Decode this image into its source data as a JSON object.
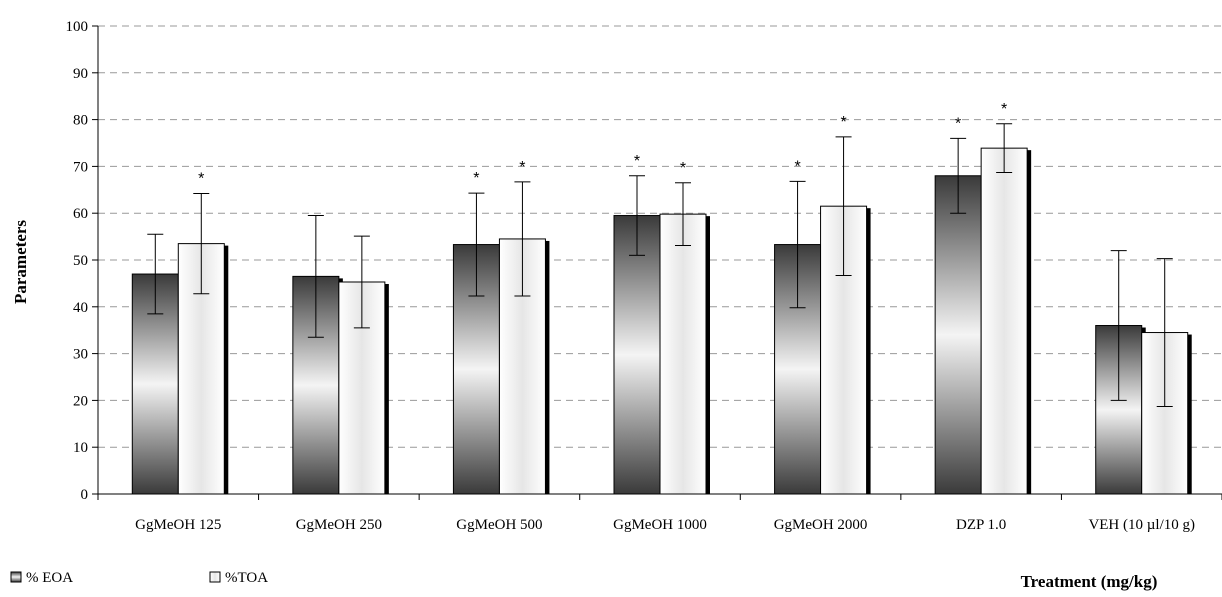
{
  "chart_data": {
    "type": "bar",
    "xlabel": "Treatment (mg/kg)",
    "ylabel": "Parameters",
    "ylim": [
      0,
      100
    ],
    "yticks": [
      0,
      10,
      20,
      30,
      40,
      50,
      60,
      70,
      80,
      90,
      100
    ],
    "grid": true,
    "legend_placement": "bottom-left",
    "categories": [
      "GgMeOH  125",
      "GgMeOH  250",
      "GgMeOH 500",
      "GgMeOH  1000",
      "GgMeOH  2000",
      "DZP 1.0",
      "VEH (10 µl/10 g)"
    ],
    "series": [
      {
        "name": "% EOA",
        "values": [
          47,
          46.5,
          53.3,
          59.5,
          53.3,
          68,
          36
        ],
        "errors": [
          8.5,
          13,
          11,
          8.5,
          13.5,
          8,
          16
        ],
        "significant": [
          false,
          false,
          true,
          true,
          true,
          true,
          false
        ],
        "color": "#4a4a4a"
      },
      {
        "name": "%TOA",
        "values": [
          53.5,
          45.3,
          54.5,
          59.8,
          61.5,
          73.9,
          34.5
        ],
        "errors": [
          10.7,
          9.8,
          12.2,
          6.7,
          14.8,
          5.2,
          15.8
        ],
        "significant": [
          true,
          false,
          true,
          true,
          true,
          true,
          false
        ],
        "color": "#ffffff"
      }
    ],
    "annotation_symbol": "*"
  }
}
